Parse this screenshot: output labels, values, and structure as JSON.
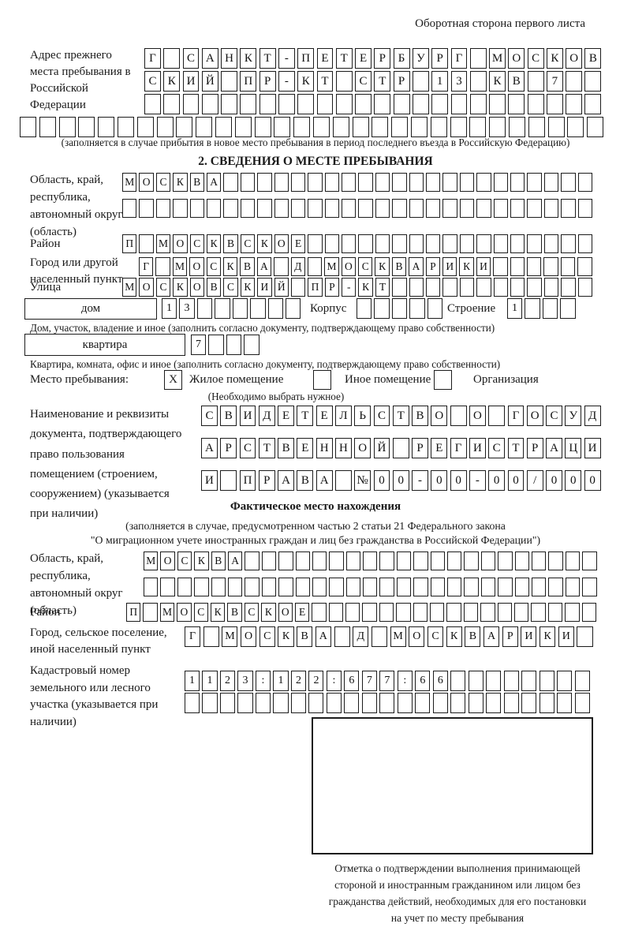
{
  "page": {
    "header_note": "Оборотная сторона первого листа"
  },
  "prev_address": {
    "label": "Адрес прежнего места пребывания в Российской Федерации",
    "note": "(заполняется в случае прибытия в новое место пребывания в период последнего въезда в Российскую Федерацию)",
    "rows": [
      {
        "n": 24,
        "text": "Г САНКТ-ПЕТЕРБУРГ МОСКОВ"
      },
      {
        "n": 24,
        "text": "СКИЙ ПР-КТ СТР 13 КВ 7"
      },
      {
        "n": 24,
        "text": ""
      },
      {
        "n": 30,
        "text": ""
      }
    ]
  },
  "section2": {
    "title": "2. СВЕДЕНИЯ О МЕСТЕ ПРЕБЫВАНИЯ",
    "region": {
      "label": "Область, край, республика, автономный округ (область)",
      "rows": [
        {
          "n": 28,
          "text": "МОСКВА"
        },
        {
          "n": 28,
          "text": ""
        }
      ]
    },
    "district": {
      "label": "Район",
      "row": {
        "n": 28,
        "text": "П МОСКВСКОЕ"
      }
    },
    "city": {
      "label": "Город или другой населенный пункт",
      "row": {
        "n": 27,
        "text": "Г МОСКВА Д МОСКВАРИКИ"
      }
    },
    "street": {
      "label": "Улица",
      "row": {
        "n": 28,
        "text": "МОСКОВСКИЙ ПР-КТ"
      }
    },
    "house": {
      "box_label": "дом",
      "row": {
        "n": 8,
        "text": "13"
      },
      "korpus_label": "Корпус",
      "korpus_row": {
        "n": 5,
        "text": ""
      },
      "stroenie_label": "Строение",
      "stroenie_row": {
        "n": 4,
        "text": "1"
      },
      "note": "Дом, участок, владение и иное (заполнить согласно документу, подтверждающему право собственности)"
    },
    "apartment": {
      "box_label": "квартира",
      "row": {
        "n": 4,
        "text": "7"
      },
      "note": "Квартира, комната, офис и иное (заполнить согласно документу, подтверждающему право собственности)"
    },
    "stay_type": {
      "label": "Место пребывания:",
      "options": [
        {
          "label": "Жилое помещение",
          "checked": "X"
        },
        {
          "label": "Иное помещение",
          "checked": ""
        },
        {
          "label": "Организация",
          "checked": ""
        }
      ],
      "note": "(Необходимо выбрать нужное)"
    },
    "document": {
      "label": "Наименование и реквизиты документа, подтверждающего право пользования помещением (строением, сооружением) (указывается при наличии)",
      "rows": [
        {
          "n": 21,
          "text": "СВИДЕТЕЛЬСТВО О ГОСУД"
        },
        {
          "n": 21,
          "text": "АРСТВЕННОЙ РЕГИСТРАЦИ"
        },
        {
          "n": 21,
          "text": "И ПРАВА №00-00-00/000"
        }
      ]
    }
  },
  "actual_location": {
    "heading": "Фактическое место нахождения",
    "note1": "(заполняется в случае, предусмотренном частью 2 статьи 21 Федерального закона",
    "note2": "\"О миграционном учете иностранных граждан и лиц без гражданства в Российской Федерации\")",
    "region": {
      "label": "Область, край, республика, автономный округ (область)",
      "rows": [
        {
          "n": 27,
          "text": "МОСКВА"
        },
        {
          "n": 27,
          "text": ""
        }
      ]
    },
    "district": {
      "label": "Район",
      "row": {
        "n": 28,
        "text": "П МОСКВСКОЕ"
      }
    },
    "city": {
      "label": "Город, сельское поселение, иной населенный пункт",
      "row": {
        "n": 22,
        "text": "Г МОСКВА Д МОСКВАРИКИ"
      }
    },
    "cadastral": {
      "label": "Кадастровый номер земельного или лесного участка (указывается при наличии)",
      "rows": [
        {
          "n": 23,
          "text": "1123:122:677:66"
        },
        {
          "n": 23,
          "text": ""
        }
      ]
    },
    "stamp_caption": "Отметка о подтверждении выполнения принимающей стороной и иностранным гражданином или лицом без гражданства действий, необходимых для его постановки на учет по месту пребывания"
  }
}
